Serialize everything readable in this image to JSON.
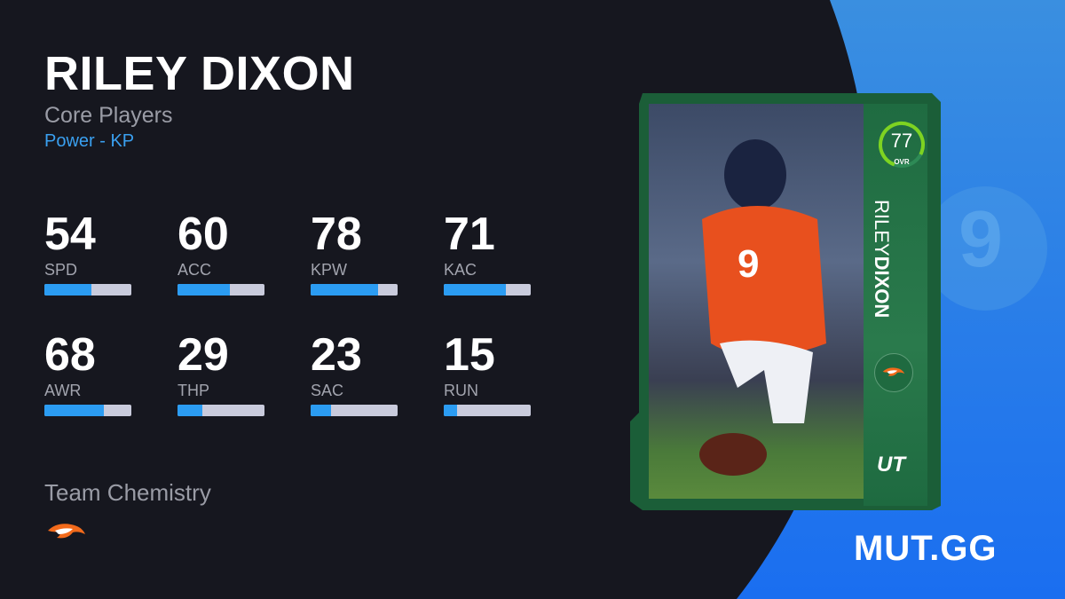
{
  "player": {
    "name": "RILEY DIXON",
    "first_name": "RILEY",
    "last_name": "DIXON",
    "program": "Core Players",
    "archetype": "Power - KP",
    "ovr": 77,
    "ovr_label": "OVR",
    "card_tag": "UT",
    "team": "Denver Broncos",
    "jersey_number": "9"
  },
  "stats": [
    {
      "value": 54,
      "label": "SPD"
    },
    {
      "value": 60,
      "label": "ACC"
    },
    {
      "value": 78,
      "label": "KPW"
    },
    {
      "value": 71,
      "label": "KAC"
    },
    {
      "value": 68,
      "label": "AWR"
    },
    {
      "value": 29,
      "label": "THP"
    },
    {
      "value": 23,
      "label": "SAC"
    },
    {
      "value": 15,
      "label": "RUN"
    }
  ],
  "chemistry": {
    "title": "Team Chemistry",
    "team_icon": "broncos-logo-icon"
  },
  "brand": "MUT.GG",
  "colors": {
    "background": "#16171f",
    "accent": "#2b9cf2",
    "bar_track": "#c9cbdc",
    "card_green": "#1f6b41",
    "ovr_ring": "#7ed321"
  }
}
